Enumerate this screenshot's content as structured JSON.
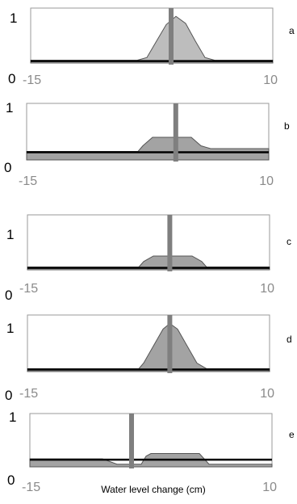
{
  "chart_data": [
    {
      "type": "area",
      "panel_label": "a",
      "x": [
        -15,
        -4,
        -3,
        -2,
        -1,
        0,
        1,
        2,
        3,
        4,
        10
      ],
      "y": [
        0.05,
        0.05,
        0.1,
        0.4,
        0.7,
        0.85,
        0.72,
        0.4,
        0.1,
        0.05,
        0.05
      ],
      "marker_x": -0.5,
      "ytick_labels": [
        "0",
        "1"
      ],
      "xtick_labels": [
        "-15",
        "10"
      ],
      "xlim": [
        -15,
        10
      ],
      "ylim": [
        0,
        1
      ],
      "fill_color": "#bdbdbd",
      "xlabel": ""
    },
    {
      "type": "area",
      "panel_label": "b",
      "x": [
        -15,
        -3.5,
        -3,
        -2,
        2,
        3,
        4,
        10
      ],
      "y": [
        0.15,
        0.15,
        0.25,
        0.4,
        0.4,
        0.25,
        0.2,
        0.2
      ],
      "marker_x": 0.4,
      "ytick_labels": [
        "0",
        "1"
      ],
      "xtick_labels": [
        "-15",
        "10"
      ],
      "xlim": [
        -15,
        10
      ],
      "ylim": [
        0,
        1
      ],
      "fill_color": "#a3a3a3",
      "xlabel": ""
    },
    {
      "type": "area",
      "panel_label": "c",
      "x": [
        -15,
        -3.5,
        -3,
        -2,
        2,
        3,
        3.5,
        10
      ],
      "y": [
        0.05,
        0.05,
        0.15,
        0.25,
        0.25,
        0.15,
        0.05,
        0.05
      ],
      "marker_x": -0.3,
      "ytick_labels": [
        "0",
        "1"
      ],
      "xtick_labels": [
        "-15",
        "10"
      ],
      "xlim": [
        -15,
        10
      ],
      "ylim": [
        0,
        1
      ],
      "fill_color": "#a3a3a3",
      "xlabel": ""
    },
    {
      "type": "area",
      "panel_label": "d",
      "x": [
        -15,
        -3.5,
        -3,
        -2,
        -1,
        -0.3,
        0.5,
        1.5,
        2.5,
        3.5,
        10
      ],
      "y": [
        0.05,
        0.05,
        0.15,
        0.45,
        0.75,
        0.85,
        0.75,
        0.45,
        0.15,
        0.05,
        0.05
      ],
      "marker_x": -0.3,
      "ytick_labels": [
        "0",
        "1"
      ],
      "xtick_labels": [
        "-15",
        "10"
      ],
      "xlim": [
        -15,
        10
      ],
      "ylim": [
        0,
        1
      ],
      "fill_color": "#a3a3a3",
      "xlabel": ""
    },
    {
      "type": "area",
      "panel_label": "e",
      "x": [
        -15,
        -7.5,
        -6,
        -5.5,
        -3.5,
        -3,
        -2.5,
        2.5,
        3.5,
        10
      ],
      "y": [
        0.15,
        0.15,
        0.05,
        0.05,
        0.05,
        0.2,
        0.25,
        0.25,
        0.05,
        0.05
      ],
      "marker_x": -4.5,
      "ytick_labels": [
        "0",
        "1"
      ],
      "xtick_labels": [
        "-15",
        "10"
      ],
      "xlim": [
        -15,
        10
      ],
      "ylim": [
        0,
        1
      ],
      "fill_color": "#a3a3a3",
      "xlabel": "Water level change (cm)"
    }
  ],
  "colors": {
    "axis_line": "#000000",
    "frame": "#9a9a9a",
    "marker": "#7f7f7f",
    "area_outline": "#555555"
  }
}
